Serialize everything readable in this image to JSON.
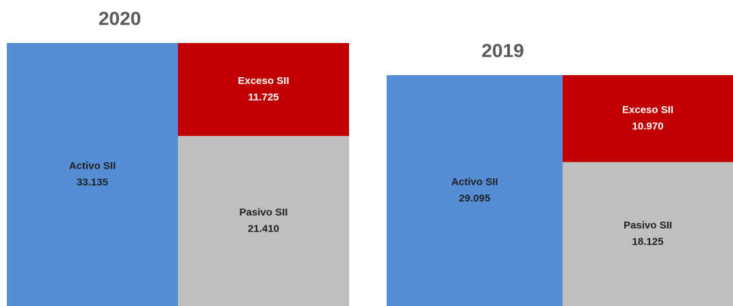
{
  "chart_data": [
    {
      "type": "balance",
      "title": "2020",
      "segments": [
        {
          "name": "Activo SII",
          "color": "#558ed5",
          "value": 33135,
          "value_label": "33.135"
        },
        {
          "name": "Exceso  SII",
          "color": "#c00000",
          "value": 11725,
          "value_label": "11.725"
        },
        {
          "name": "Pasivo SII",
          "color": "#bfbfbf",
          "value": 21410,
          "value_label": "21.410"
        }
      ]
    },
    {
      "type": "balance",
      "title": "2019",
      "segments": [
        {
          "name": "Activo SII",
          "color": "#558ed5",
          "value": 29095,
          "value_label": "29.095"
        },
        {
          "name": "Exceso  SII",
          "color": "#c00000",
          "value": 10970,
          "value_label": "10.970"
        },
        {
          "name": "Pasivo SII",
          "color": "#bfbfbf",
          "value": 18125,
          "value_label": "18.125"
        }
      ]
    }
  ]
}
